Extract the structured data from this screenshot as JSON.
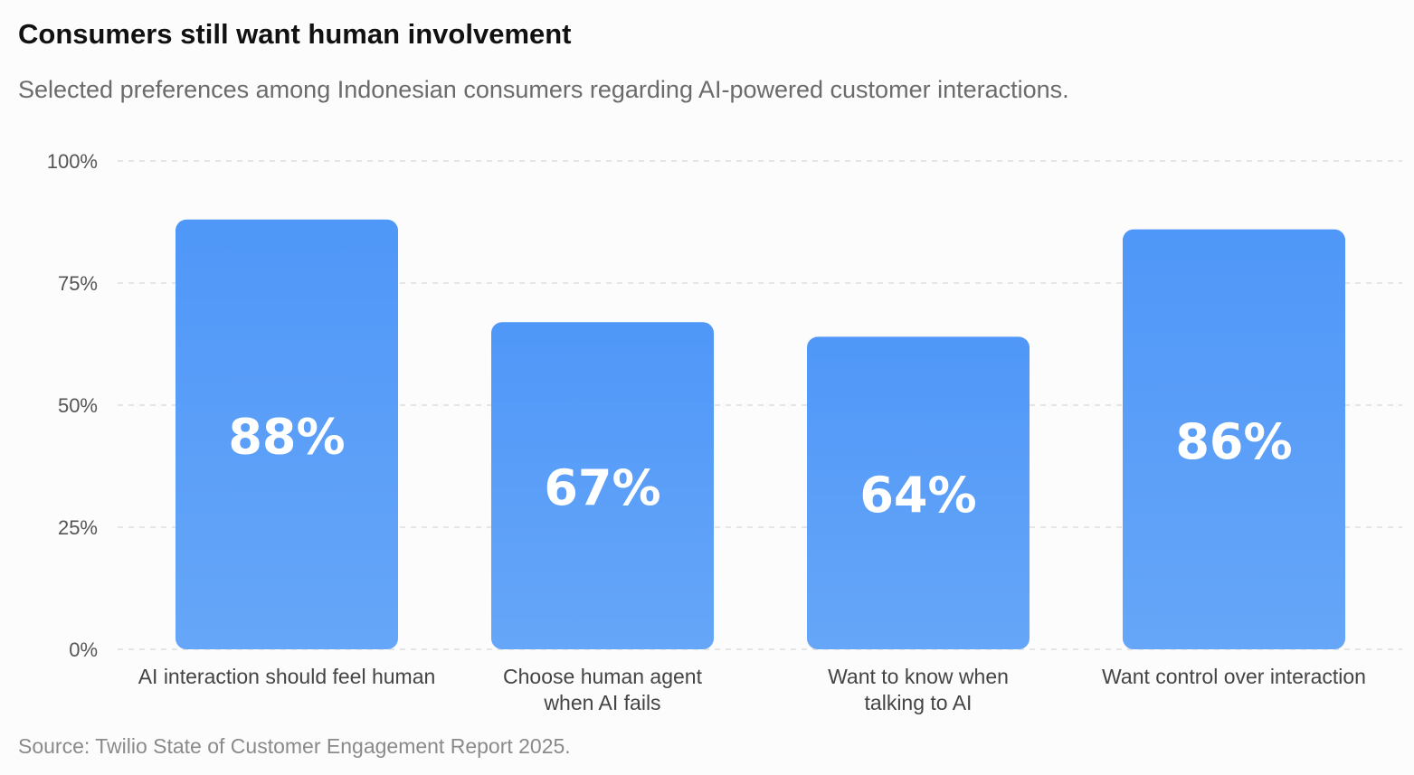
{
  "title": "Consumers still want human involvement",
  "subtitle": "Selected preferences among Indonesian consumers regarding AI-powered customer interactions.",
  "source": "Source: Twilio State of Customer Engagement Report 2025.",
  "colors": {
    "bar_top": "#4f97f8",
    "bar_bottom": "#66a6f8",
    "grid": "#dddddd"
  },
  "chart_data": {
    "type": "bar",
    "categories": [
      [
        "AI interaction should feel human"
      ],
      [
        "Choose human agent",
        "when AI fails"
      ],
      [
        "Want to know when",
        "talking to AI"
      ],
      [
        "Want control over interaction"
      ]
    ],
    "values": [
      88,
      67,
      64,
      86
    ],
    "data_labels": [
      "88%",
      "67%",
      "64%",
      "86%"
    ],
    "yticks": [
      0,
      25,
      50,
      75,
      100
    ],
    "ytick_labels": [
      "0%",
      "25%",
      "50%",
      "75%",
      "100%"
    ],
    "ylim": [
      0,
      100
    ],
    "grid": true,
    "legend": "none"
  }
}
